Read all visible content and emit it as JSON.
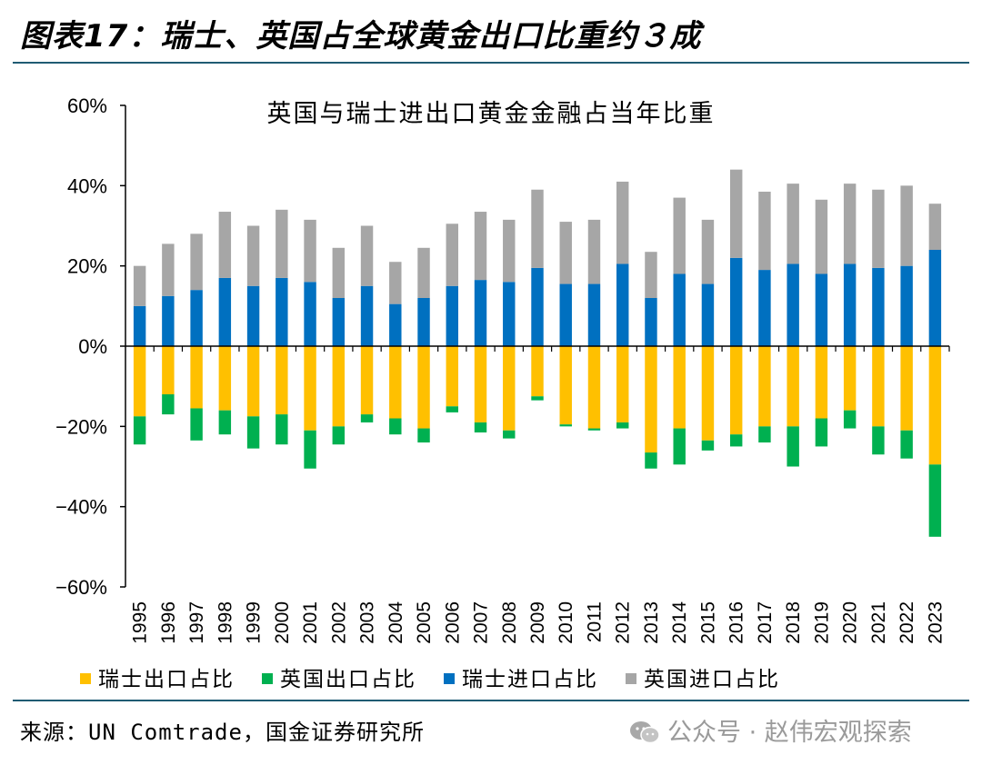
{
  "figure_title": "图表17：瑞士、英国占全球黄金出口比重约３成",
  "source_text": "来源：UN Comtrade，国金证券研究所",
  "watermark_text": "公众号 · 赵伟宏观探索",
  "watermark_icon": "wechat-icon",
  "chart_data": {
    "type": "bar",
    "stacked": true,
    "title": "英国与瑞士进出口黄金金融占当年比重",
    "xlabel": "",
    "ylabel": "",
    "ylim": [
      -60,
      60
    ],
    "yticks": [
      -60,
      -40,
      -20,
      0,
      20,
      40,
      60
    ],
    "ytick_labels": [
      "−60%",
      "−40%",
      "−20%",
      "0%",
      "20%",
      "40%",
      "60%"
    ],
    "grid": false,
    "legend_position": "bottom",
    "categories": [
      "1995",
      "1996",
      "1997",
      "1998",
      "1999",
      "2000",
      "2001",
      "2002",
      "2003",
      "2004",
      "2005",
      "2006",
      "2007",
      "2008",
      "2009",
      "2010",
      "2011",
      "2012",
      "2013",
      "2014",
      "2015",
      "2016",
      "2017",
      "2018",
      "2019",
      "2020",
      "2021",
      "2022",
      "2023"
    ],
    "series": [
      {
        "name": "瑞士出口占比",
        "color": "#ffc000",
        "values": [
          -17.5,
          -12,
          -15.5,
          -16,
          -17.5,
          -17,
          -21,
          -20,
          -17,
          -18,
          -20.5,
          -15,
          -19,
          -21,
          -12.5,
          -19.5,
          -20.5,
          -19,
          -26.5,
          -20.5,
          -23.5,
          -22,
          -20,
          -20,
          -18,
          -16,
          -20,
          -21,
          -29.5
        ]
      },
      {
        "name": "英国出口占比",
        "color": "#00b050",
        "values": [
          -7,
          -5,
          -8,
          -6,
          -8,
          -7.5,
          -9.5,
          -4.5,
          -2,
          -4,
          -3.5,
          -1.5,
          -2.5,
          -2,
          -1,
          -0.5,
          -0.5,
          -1.5,
          -4,
          -9,
          -2.5,
          -3,
          -4,
          -10,
          -7,
          -4.5,
          -7,
          -7,
          -18
        ]
      },
      {
        "name": "瑞士进口占比",
        "color": "#0070c0",
        "values": [
          10,
          12.5,
          14,
          17,
          15,
          17,
          16,
          12,
          15,
          10.5,
          12,
          15,
          16.5,
          16,
          19.5,
          15.5,
          15.5,
          20.5,
          12,
          18,
          15.5,
          22,
          19,
          20.5,
          18,
          20.5,
          19.5,
          20,
          24
        ]
      },
      {
        "name": "英国进口占比",
        "color": "#a6a6a6",
        "values": [
          10,
          13,
          14,
          16.5,
          15,
          17,
          15.5,
          12.5,
          15,
          10.5,
          12.5,
          15.5,
          17,
          15.5,
          19.5,
          15.5,
          16,
          20.5,
          11.5,
          19,
          16,
          22,
          19.5,
          20,
          18.5,
          20,
          19.5,
          20,
          11.5
        ]
      }
    ]
  }
}
